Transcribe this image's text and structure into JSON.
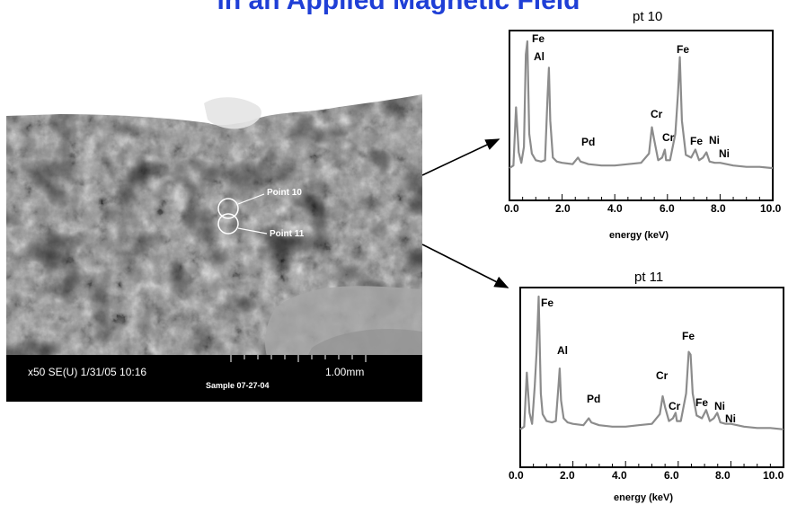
{
  "title": "in an Applied Magnetic Field",
  "sem": {
    "info": "x50 SE(U) 1/31/05 10:16",
    "scale": "1.00mm",
    "sample": "Sample 07-27-04",
    "points": [
      "Point 10",
      "Point 11"
    ]
  },
  "charts": [
    {
      "title": "pt 10",
      "xlabel": "energy (keV)",
      "ticks": [
        "0.0",
        "2.0",
        "4.0",
        "6.0",
        "8.0",
        "10.0"
      ],
      "elements": [
        "Fe",
        "Al",
        "Pd",
        "Cr",
        "Cr",
        "Fe",
        "Fe",
        "Ni",
        "Ni"
      ]
    },
    {
      "title": "pt 11",
      "xlabel": "energy (keV)",
      "ticks": [
        "0.0",
        "2.0",
        "4.0",
        "6.0",
        "8.0",
        "10.0"
      ],
      "elements": [
        "Fe",
        "Al",
        "Pd",
        "Cr",
        "Cr",
        "Fe",
        "Fe",
        "Ni",
        "Ni"
      ]
    }
  ],
  "chart_data": [
    {
      "type": "line",
      "title": "pt 10",
      "xlabel": "energy (keV)",
      "xlim": [
        0,
        10
      ],
      "x": [
        0.0,
        0.15,
        0.25,
        0.35,
        0.45,
        0.55,
        0.62,
        0.68,
        0.75,
        0.85,
        1.0,
        1.2,
        1.35,
        1.45,
        1.5,
        1.55,
        1.65,
        1.8,
        2.0,
        2.4,
        2.6,
        2.7,
        2.85,
        3.0,
        3.5,
        4.0,
        4.5,
        5.0,
        5.3,
        5.41,
        5.5,
        5.65,
        5.8,
        5.9,
        5.95,
        6.1,
        6.3,
        6.4,
        6.47,
        6.55,
        6.7,
        6.9,
        7.06,
        7.2,
        7.35,
        7.48,
        7.6,
        7.8,
        8.0,
        8.5,
        9.0,
        9.5,
        10.0
      ],
      "y": [
        4,
        6,
        50,
        16,
        8,
        20,
        90,
        100,
        30,
        15,
        10,
        9,
        10,
        60,
        80,
        40,
        12,
        9,
        8,
        7,
        12,
        9,
        8,
        7,
        6,
        6,
        7,
        8,
        15,
        35,
        25,
        10,
        12,
        18,
        10,
        10,
        30,
        60,
        88,
        40,
        14,
        12,
        18,
        10,
        12,
        16,
        9,
        8,
        8,
        6,
        5,
        5,
        4
      ],
      "peaks": [
        {
          "label": "Fe",
          "x": 0.7
        },
        {
          "label": "Al",
          "x": 1.49
        },
        {
          "label": "Pd",
          "x": 2.84
        },
        {
          "label": "Cr",
          "x": 5.41
        },
        {
          "label": "Cr",
          "x": 5.95
        },
        {
          "label": "Fe",
          "x": 6.4
        },
        {
          "label": "Fe",
          "x": 7.06
        },
        {
          "label": "Ni",
          "x": 7.48
        },
        {
          "label": "Ni",
          "x": 8.26
        }
      ]
    },
    {
      "type": "line",
      "title": "pt 11",
      "xlabel": "energy (keV)",
      "xlim": [
        0,
        10
      ],
      "x": [
        0.0,
        0.15,
        0.25,
        0.35,
        0.45,
        0.55,
        0.62,
        0.7,
        0.78,
        0.85,
        1.0,
        1.2,
        1.35,
        1.45,
        1.5,
        1.55,
        1.65,
        1.8,
        2.0,
        2.4,
        2.6,
        2.7,
        2.85,
        3.0,
        3.5,
        4.0,
        4.5,
        5.0,
        5.3,
        5.41,
        5.5,
        5.65,
        5.8,
        5.9,
        5.95,
        6.1,
        6.3,
        6.4,
        6.47,
        6.55,
        6.7,
        6.9,
        7.06,
        7.2,
        7.35,
        7.48,
        7.6,
        7.8,
        8.0,
        8.5,
        9.0,
        9.5,
        10.0
      ],
      "y": [
        4,
        6,
        45,
        16,
        8,
        35,
        60,
        100,
        30,
        15,
        10,
        9,
        10,
        35,
        48,
        25,
        12,
        9,
        8,
        7,
        12,
        9,
        8,
        7,
        6,
        6,
        7,
        8,
        15,
        28,
        20,
        10,
        12,
        16,
        10,
        10,
        30,
        60,
        58,
        30,
        14,
        12,
        18,
        10,
        12,
        16,
        9,
        8,
        8,
        6,
        5,
        5,
        4
      ],
      "peaks": [
        {
          "label": "Fe",
          "x": 0.7
        },
        {
          "label": "Al",
          "x": 1.49
        },
        {
          "label": "Pd",
          "x": 2.84
        },
        {
          "label": "Cr",
          "x": 5.41
        },
        {
          "label": "Cr",
          "x": 5.95
        },
        {
          "label": "Fe",
          "x": 6.4
        },
        {
          "label": "Fe",
          "x": 7.06
        },
        {
          "label": "Ni",
          "x": 7.48
        },
        {
          "label": "Ni",
          "x": 8.26
        }
      ]
    }
  ]
}
